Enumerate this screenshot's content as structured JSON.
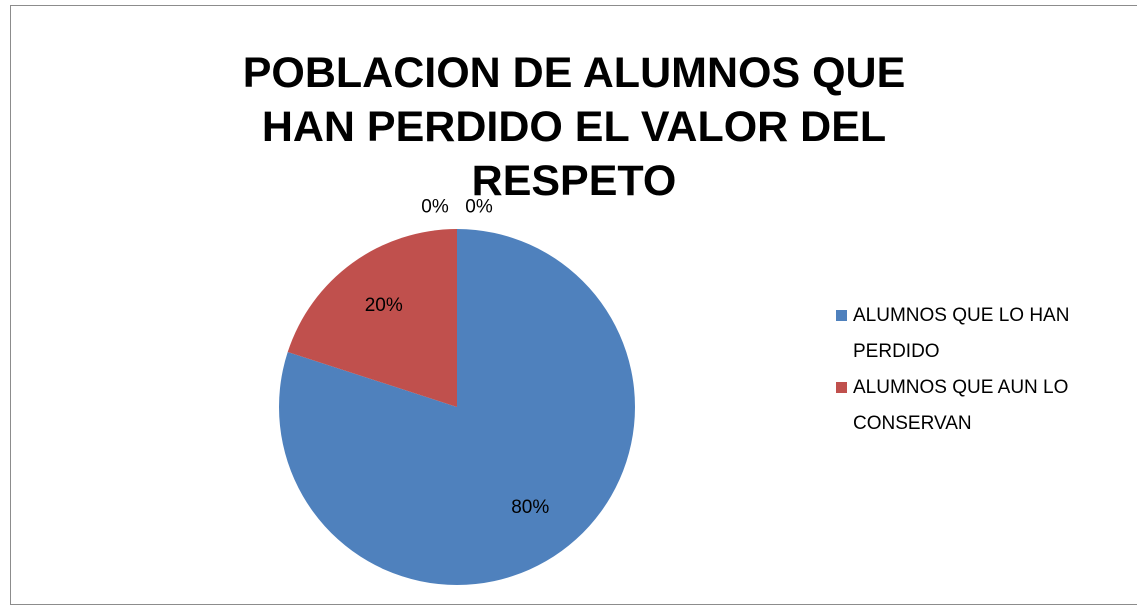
{
  "chart_data": {
    "type": "pie",
    "title": "POBLACION DE ALUMNOS QUE HAN PERDIDO EL VALOR DEL RESPETO",
    "categories": [
      "ALUMNOS QUE LO HAN PERDIDO",
      "ALUMNOS QUE AUN LO CONSERVAN",
      null,
      null
    ],
    "values": [
      80,
      20,
      0,
      0
    ],
    "value_labels": [
      "80%",
      "20%",
      "0%",
      "0%"
    ],
    "colors": [
      "#4f81bd",
      "#c0504d",
      "#9bbb59",
      "#8064a2"
    ],
    "legend": "right"
  }
}
